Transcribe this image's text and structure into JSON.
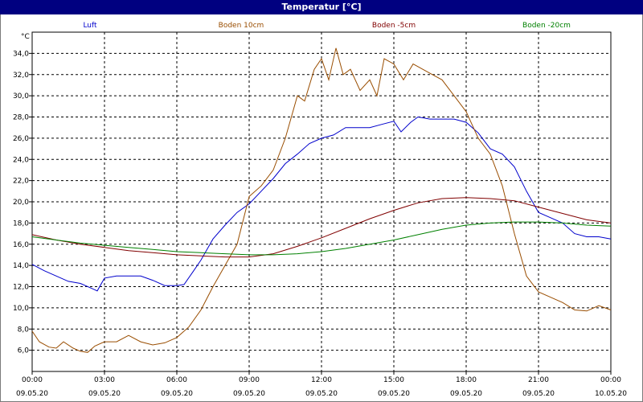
{
  "chart_data": {
    "type": "line",
    "title": "Temperatur [°C]",
    "ylabel": "°C",
    "xlabel": "",
    "ylim": [
      4.0,
      36.0
    ],
    "y_ticks": [
      "6,0",
      "8,0",
      "10,0",
      "12,0",
      "14,0",
      "16,0",
      "18,0",
      "20,0",
      "22,0",
      "24,0",
      "26,0",
      "28,0",
      "30,0",
      "32,0",
      "34,0"
    ],
    "x_ticks": [
      {
        "time": "00:00",
        "date": "09.05.20"
      },
      {
        "time": "03:00",
        "date": "09.05.20"
      },
      {
        "time": "06:00",
        "date": "09.05.20"
      },
      {
        "time": "09:00",
        "date": "09.05.20"
      },
      {
        "time": "12:00",
        "date": "09.05.20"
      },
      {
        "time": "15:00",
        "date": "09.05.20"
      },
      {
        "time": "18:00",
        "date": "09.05.20"
      },
      {
        "time": "21:00",
        "date": "09.05.20"
      },
      {
        "time": "00:00",
        "date": "10.05.20"
      }
    ],
    "grid": true,
    "legend_position": "top",
    "series": [
      {
        "name": "Luft",
        "color": "#0000cc",
        "points": [
          [
            0,
            14.1
          ],
          [
            0.5,
            13.5
          ],
          [
            1,
            13
          ],
          [
            1.5,
            12.5
          ],
          [
            2,
            12.3
          ],
          [
            2.5,
            11.8
          ],
          [
            2.7,
            11.6
          ],
          [
            3,
            12.8
          ],
          [
            3.5,
            13
          ],
          [
            4,
            13
          ],
          [
            4.5,
            13
          ],
          [
            5,
            12.6
          ],
          [
            5.5,
            12.1
          ],
          [
            6,
            12.1
          ],
          [
            6.3,
            12.2
          ],
          [
            6.7,
            13.5
          ],
          [
            7,
            14.5
          ],
          [
            7.5,
            16.5
          ],
          [
            8,
            17.8
          ],
          [
            8.5,
            19
          ],
          [
            9,
            19.8
          ],
          [
            9.5,
            21
          ],
          [
            10,
            22.2
          ],
          [
            10.5,
            23.6
          ],
          [
            11,
            24.5
          ],
          [
            11.5,
            25.5
          ],
          [
            12,
            26
          ],
          [
            12.5,
            26.3
          ],
          [
            13,
            27
          ],
          [
            13.5,
            27
          ],
          [
            14,
            27
          ],
          [
            14.5,
            27.3
          ],
          [
            15,
            27.6
          ],
          [
            15.3,
            26.6
          ],
          [
            15.7,
            27.5
          ],
          [
            16,
            28
          ],
          [
            16.5,
            27.8
          ],
          [
            17,
            27.8
          ],
          [
            17.5,
            27.8
          ],
          [
            18,
            27.5
          ],
          [
            18.5,
            26.5
          ],
          [
            19,
            25
          ],
          [
            19.5,
            24.5
          ],
          [
            20,
            23.3
          ],
          [
            20.5,
            21
          ],
          [
            21,
            19
          ],
          [
            21.5,
            18.5
          ],
          [
            22,
            18
          ],
          [
            22.5,
            17
          ],
          [
            23,
            16.7
          ],
          [
            23.5,
            16.7
          ],
          [
            24,
            16.5
          ]
        ]
      },
      {
        "name": "Boden 10cm",
        "color": "#994d00",
        "points": [
          [
            0,
            7.8
          ],
          [
            0.3,
            6.8
          ],
          [
            0.7,
            6.3
          ],
          [
            1,
            6.2
          ],
          [
            1.3,
            6.8
          ],
          [
            1.7,
            6.2
          ],
          [
            2,
            5.9
          ],
          [
            2.3,
            5.8
          ],
          [
            2.6,
            6.4
          ],
          [
            3,
            6.8
          ],
          [
            3.5,
            6.8
          ],
          [
            4,
            7.4
          ],
          [
            4.5,
            6.8
          ],
          [
            5,
            6.5
          ],
          [
            5.5,
            6.7
          ],
          [
            6,
            7.2
          ],
          [
            6.5,
            8.2
          ],
          [
            7,
            9.8
          ],
          [
            7.5,
            12
          ],
          [
            8,
            14
          ],
          [
            8.5,
            16
          ],
          [
            9,
            20.5
          ],
          [
            9.5,
            21.5
          ],
          [
            10,
            23
          ],
          [
            10.5,
            26
          ],
          [
            11,
            30
          ],
          [
            11.3,
            29.5
          ],
          [
            11.7,
            32.5
          ],
          [
            12,
            33.5
          ],
          [
            12.3,
            31.5
          ],
          [
            12.6,
            34.5
          ],
          [
            12.9,
            32
          ],
          [
            13.2,
            32.5
          ],
          [
            13.6,
            30.5
          ],
          [
            14,
            31.5
          ],
          [
            14.3,
            30
          ],
          [
            14.6,
            33.5
          ],
          [
            15,
            33
          ],
          [
            15.4,
            31.5
          ],
          [
            15.8,
            33
          ],
          [
            16.2,
            32.5
          ],
          [
            16.6,
            32
          ],
          [
            17,
            31.5
          ],
          [
            17.5,
            30
          ],
          [
            18,
            28.5
          ],
          [
            18.5,
            26
          ],
          [
            19,
            24.5
          ],
          [
            19.5,
            21.5
          ],
          [
            20,
            17
          ],
          [
            20.5,
            13
          ],
          [
            21,
            11.5
          ],
          [
            21.5,
            11
          ],
          [
            22,
            10.5
          ],
          [
            22.5,
            9.8
          ],
          [
            23,
            9.7
          ],
          [
            23.5,
            10.2
          ],
          [
            24,
            9.8
          ]
        ]
      },
      {
        "name": "Boden -5cm",
        "color": "#800000",
        "points": [
          [
            0,
            16.9
          ],
          [
            1,
            16.4
          ],
          [
            2,
            16
          ],
          [
            3,
            15.7
          ],
          [
            4,
            15.4
          ],
          [
            5,
            15.2
          ],
          [
            6,
            15
          ],
          [
            7,
            14.9
          ],
          [
            8,
            14.8
          ],
          [
            9,
            14.8
          ],
          [
            10,
            15.1
          ],
          [
            11,
            15.8
          ],
          [
            12,
            16.6
          ],
          [
            13,
            17.5
          ],
          [
            14,
            18.4
          ],
          [
            15,
            19.2
          ],
          [
            16,
            19.9
          ],
          [
            17,
            20.3
          ],
          [
            18,
            20.4
          ],
          [
            19,
            20.3
          ],
          [
            20,
            20.1
          ],
          [
            21,
            19.5
          ],
          [
            22,
            18.9
          ],
          [
            23,
            18.3
          ],
          [
            24,
            18
          ]
        ]
      },
      {
        "name": "Boden -20cm",
        "color": "#008000",
        "points": [
          [
            0,
            16.7
          ],
          [
            1,
            16.4
          ],
          [
            2,
            16.1
          ],
          [
            3,
            15.9
          ],
          [
            4,
            15.7
          ],
          [
            5,
            15.5
          ],
          [
            6,
            15.3
          ],
          [
            7,
            15.2
          ],
          [
            8,
            15.1
          ],
          [
            9,
            15
          ],
          [
            10,
            15
          ],
          [
            11,
            15.1
          ],
          [
            12,
            15.3
          ],
          [
            13,
            15.6
          ],
          [
            14,
            16
          ],
          [
            15,
            16.4
          ],
          [
            16,
            16.9
          ],
          [
            17,
            17.4
          ],
          [
            18,
            17.8
          ],
          [
            19,
            18
          ],
          [
            20,
            18.1
          ],
          [
            21,
            18.1
          ],
          [
            22,
            18
          ],
          [
            23,
            17.8
          ],
          [
            24,
            17.7
          ]
        ]
      }
    ]
  }
}
